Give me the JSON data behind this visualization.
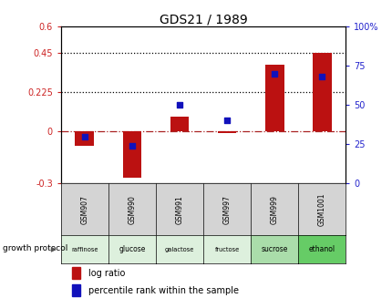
{
  "title": "GDS21 / 1989",
  "samples": [
    "GSM907",
    "GSM990",
    "GSM991",
    "GSM997",
    "GSM999",
    "GSM1001"
  ],
  "protocols": [
    "raffinose",
    "glucose",
    "galactose",
    "fructose",
    "sucrose",
    "ethanol"
  ],
  "log_ratio": [
    -0.085,
    -0.27,
    0.085,
    -0.01,
    0.38,
    0.45
  ],
  "percentile_rank": [
    30,
    24,
    50,
    40,
    70,
    68
  ],
  "bar_color": "#bb1111",
  "dot_color": "#1111bb",
  "ylim_left": [
    -0.3,
    0.6
  ],
  "ylim_right": [
    0,
    100
  ],
  "yticks_left": [
    -0.3,
    0,
    0.225,
    0.45,
    0.6
  ],
  "ytick_labels_left": [
    "-0.3",
    "0",
    "0.225",
    "0.45",
    "0.6"
  ],
  "yticks_right": [
    0,
    25,
    50,
    75,
    100
  ],
  "ytick_labels_right": [
    "0",
    "25",
    "50",
    "75",
    "100%"
  ],
  "hlines": [
    0.225,
    0.45
  ],
  "protocol_colors": [
    "#ddf0dd",
    "#ddf0dd",
    "#ddf0dd",
    "#ddf0dd",
    "#aaddaa",
    "#66cc66"
  ],
  "left_axis_color": "#cc2222",
  "right_axis_color": "#2222cc",
  "bar_width": 0.4,
  "growth_protocol_label": "growth protocol"
}
